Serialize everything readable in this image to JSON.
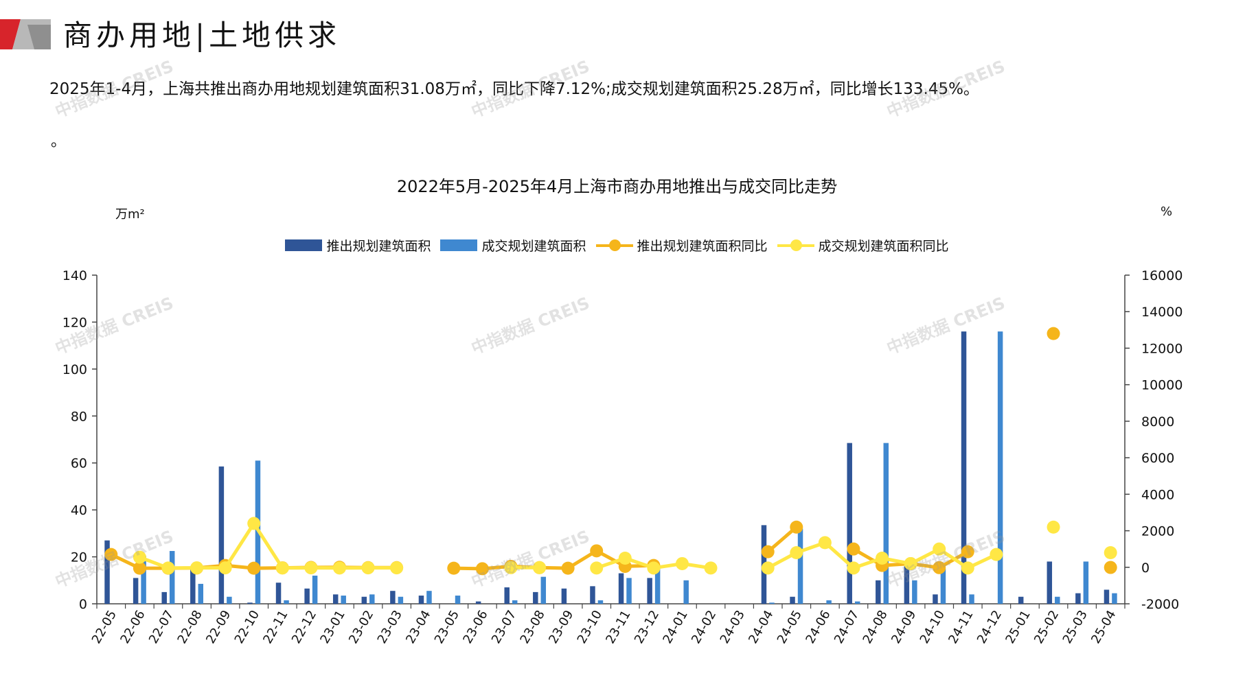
{
  "header": {
    "title_left": "商办用地",
    "title_right": "土地供求",
    "separator": "|"
  },
  "summary": {
    "text": "2025年1-4月，上海共推出商办用地规划建筑面积31.08万㎡，同比下降7.12%;成交规划建筑面积25.28万㎡，同比增长133.45%。",
    "trailing": "。"
  },
  "watermark": "中指数据 CREIS",
  "colors": {
    "bar_launch": "#2F5597",
    "bar_deal": "#3F88D0",
    "line_launch": "#F5B51B",
    "line_deal": "#FFE745",
    "axis": "#444444"
  },
  "chart_data": {
    "type": "bar",
    "title": "2022年5月-2025年4月上海市商办用地推出与成交同比走势",
    "y_left_unit": "万m²",
    "y_right_unit": "%",
    "y_left_range": [
      0,
      140
    ],
    "y_left_ticks": [
      0,
      20,
      40,
      60,
      80,
      100,
      120,
      140
    ],
    "y_right_range": [
      -2000,
      16000
    ],
    "y_right_ticks": [
      -2000,
      0,
      2000,
      4000,
      6000,
      8000,
      10000,
      12000,
      14000,
      16000
    ],
    "grid": false,
    "legend_position": "top-center",
    "categories": [
      "22-05",
      "22-06",
      "22-07",
      "22-08",
      "22-09",
      "22-10",
      "22-11",
      "22-12",
      "23-01",
      "23-02",
      "23-03",
      "23-04",
      "23-05",
      "23-06",
      "23-07",
      "23-08",
      "23-09",
      "23-10",
      "23-11",
      "23-12",
      "24-01",
      "24-02",
      "24-03",
      "24-04",
      "24-05",
      "24-06",
      "24-07",
      "24-08",
      "24-09",
      "24-10",
      "24-11",
      "24-12",
      "25-01",
      "25-02",
      "25-03",
      "25-04"
    ],
    "series": [
      {
        "name": "推出规划建筑面积",
        "kind": "bar",
        "axis": "left",
        "values": [
          27,
          11,
          5,
          15,
          58.5,
          0.5,
          9,
          6.5,
          4,
          3,
          5.5,
          3.5,
          0,
          1,
          7,
          5,
          6.5,
          7.5,
          13,
          11,
          0,
          0,
          0,
          33.5,
          3,
          0,
          68.5,
          10,
          16,
          4,
          116,
          0,
          3,
          18,
          4.5,
          6
        ]
      },
      {
        "name": "成交规划建筑面积",
        "kind": "bar",
        "axis": "left",
        "values": [
          0,
          20.5,
          22.5,
          8.5,
          3,
          61,
          1.5,
          12,
          3.5,
          4,
          3,
          5.5,
          3.5,
          0,
          1.5,
          11.5,
          0,
          1.5,
          11,
          16.5,
          10,
          0,
          0,
          0.5,
          32,
          1.5,
          1,
          68.5,
          10,
          15,
          4,
          116,
          0,
          3,
          18,
          4.5
        ]
      },
      {
        "name": "推出规划建筑面积同比",
        "kind": "line",
        "axis": "right",
        "values": [
          700,
          -50,
          -50,
          -40,
          100,
          -50,
          -30,
          -10,
          0,
          -20,
          -20,
          null,
          -50,
          -80,
          50,
          -20,
          -50,
          900,
          50,
          100,
          null,
          null,
          null,
          850,
          2200,
          null,
          1000,
          100,
          200,
          -20,
          850,
          null,
          null,
          12800,
          null,
          -10
        ],
        "breaks_after": []
      },
      {
        "name": "成交规划建筑面积同比",
        "kind": "line",
        "axis": "right",
        "values": [
          null,
          550,
          -40,
          -30,
          -30,
          2400,
          -40,
          -30,
          -40,
          -30,
          -30,
          null,
          null,
          null,
          -20,
          -20,
          null,
          -40,
          500,
          -40,
          200,
          -40,
          null,
          -40,
          800,
          1350,
          -40,
          500,
          200,
          1000,
          -40,
          700,
          null,
          2200,
          null,
          800
        ]
      }
    ]
  }
}
